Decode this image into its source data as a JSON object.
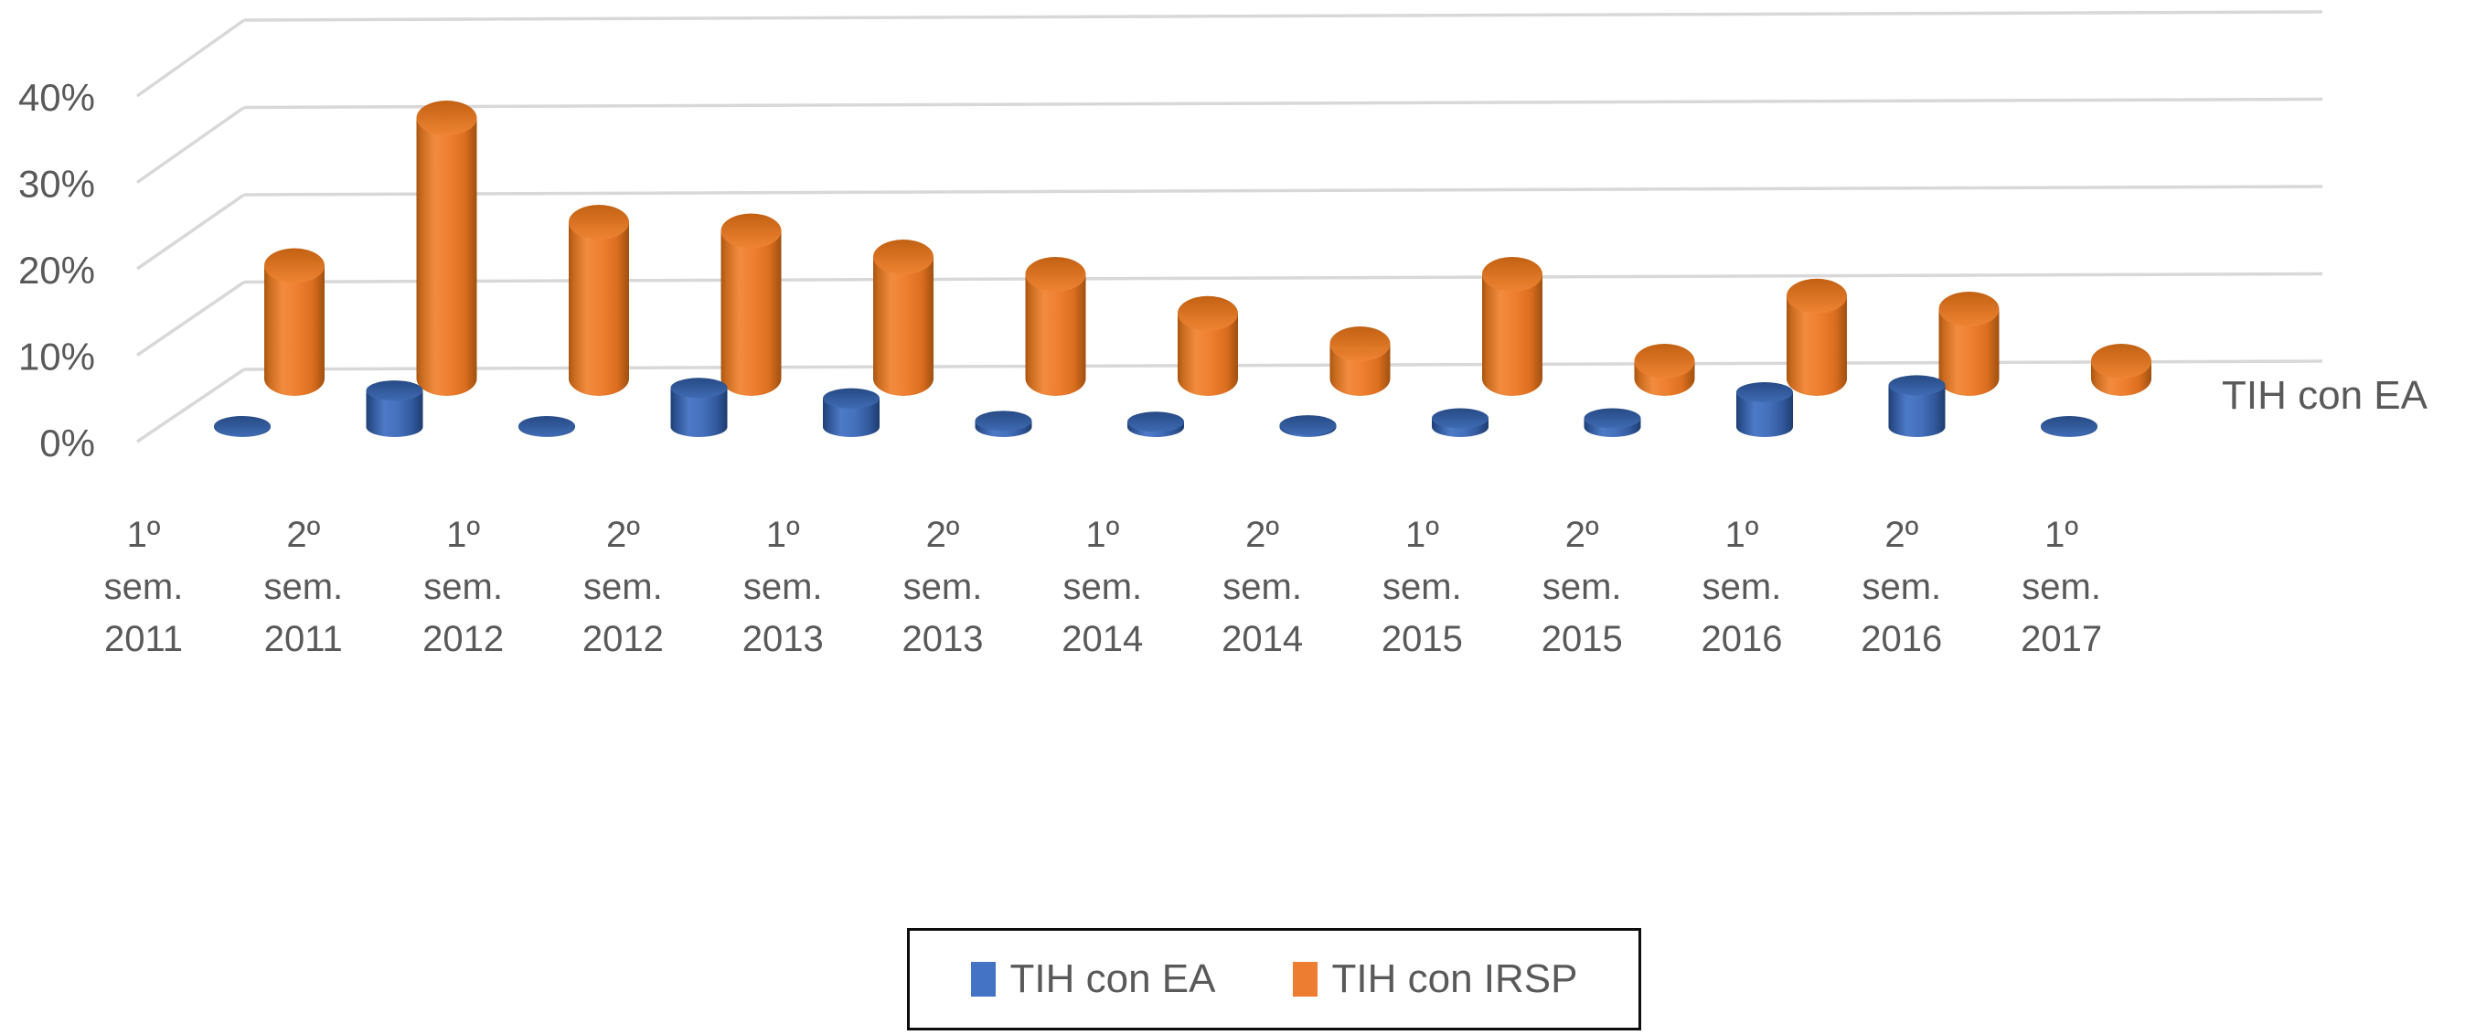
{
  "chart_data": {
    "type": "bar",
    "subtype": "3d-cylinder-clustered",
    "title": "",
    "xlabel": "",
    "ylabel": "",
    "ylim": [
      0,
      40
    ],
    "yticks": [
      "0%",
      "10%",
      "20%",
      "30%",
      "40%"
    ],
    "grid": true,
    "legend_position": "bottom-center",
    "depth_axis_label": "TIH con EA",
    "categories": [
      "1º sem. 2011",
      "2º sem. 2011",
      "1º sem. 2012",
      "2º sem. 2012",
      "1º sem. 2013",
      "2º sem. 2013",
      "1º sem. 2014",
      "2º sem. 2014",
      "1º sem. 2015",
      "2º sem. 2015",
      "1º sem. 2016",
      "2º sem. 2016",
      "1º sem. 2017"
    ],
    "series": [
      {
        "name": "TIH con EA",
        "color": "#4472C4",
        "unit": "%",
        "values": [
          0.1,
          4.2,
          0.1,
          4.5,
          3.3,
          0.7,
          0.6,
          0.2,
          1.0,
          1.0,
          4.0,
          4.8,
          0.1
        ]
      },
      {
        "name": "TIH con IRSP",
        "color": "#ED7D31",
        "unit": "%",
        "values": [
          13,
          30,
          18,
          17,
          14,
          12,
          7.5,
          4,
          12,
          2,
          9.5,
          8,
          2
        ]
      }
    ]
  },
  "colors": {
    "text": "#595959",
    "gridline": "#d8d8d8",
    "legend_border": "#0d0d0d",
    "background": "#ffffff"
  }
}
